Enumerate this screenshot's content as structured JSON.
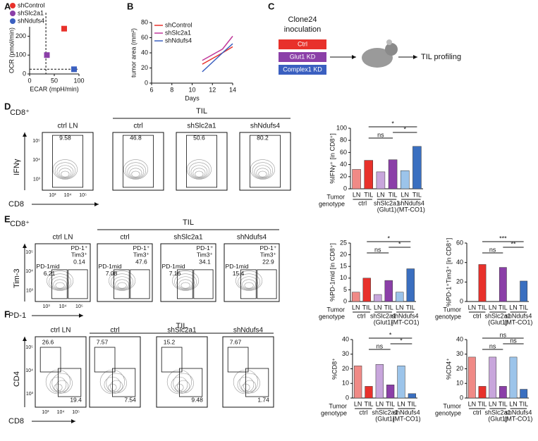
{
  "chart_data": [
    {
      "type": "scatter",
      "xlabel": "ECAR (mpH/min)",
      "ylabel": "OCR (pmol/min)",
      "xlim": [
        0,
        100
      ],
      "xticks": [
        0,
        50,
        100
      ],
      "ylim": [
        0,
        250
      ],
      "yticks": [
        0,
        100,
        200
      ],
      "ref_x": 33,
      "ref_y": 25,
      "series": [
        {
          "name": "shControl",
          "color": "#e8312b",
          "x": [
            70
          ],
          "values": [
            240
          ]
        },
        {
          "name": "shSlc2a1",
          "color": "#8b3fa8",
          "x": [
            35
          ],
          "values": [
            100
          ]
        },
        {
          "name": "shNdufs4",
          "color": "#3a5fc0",
          "x": [
            90
          ],
          "values": [
            25
          ]
        }
      ]
    },
    {
      "type": "line",
      "xlabel": "Days",
      "ylabel": "tumor area (mm²)",
      "x": [
        11,
        13,
        14
      ],
      "xlim": [
        6,
        14
      ],
      "xticks": [
        6,
        8,
        10,
        12,
        14
      ],
      "ylim": [
        0,
        80
      ],
      "yticks": [
        0,
        20,
        40,
        60,
        80
      ],
      "series": [
        {
          "name": "shControl",
          "color": "#e8312b",
          "values": [
            25,
            40,
            48
          ]
        },
        {
          "name": "shSlc2a1",
          "color": "#c0399b",
          "values": [
            30,
            45,
            62
          ]
        },
        {
          "name": "shNdufs4",
          "color": "#3a5fc0",
          "values": [
            15,
            40,
            52
          ]
        }
      ]
    },
    {
      "type": "bar",
      "ylabel": "%IFNγ⁺ [in CD8⁺]",
      "ylim": [
        0,
        100
      ],
      "yticks": [
        0,
        20,
        40,
        60,
        80,
        100
      ],
      "categories": [
        "LN",
        "TIL",
        "LN",
        "TIL",
        "LN",
        "TIL"
      ],
      "values": [
        32,
        47,
        28,
        48,
        30,
        70
      ],
      "colors": [
        "#f08a86",
        "#e8312b",
        "#c8a6dc",
        "#8b3fa8",
        "#9cc4ea",
        "#3a6fc0"
      ],
      "xlabel_lines": [
        "Tumor",
        "genotype"
      ],
      "groups": [
        {
          "name": "ctrl"
        },
        {
          "name": "shSlc2a1",
          "sub": "(Glut1)"
        },
        {
          "name": "shNdufs4",
          "sub": "(MT-CO1)"
        }
      ],
      "annotations": [
        "ns",
        "*",
        "*"
      ]
    },
    {
      "type": "bar",
      "ylabel": "%PD-1mid [in CD8⁺]",
      "ylim": [
        0,
        25
      ],
      "yticks": [
        0,
        5,
        10,
        15,
        20,
        25
      ],
      "categories": [
        "LN",
        "TIL",
        "LN",
        "TIL",
        "LN",
        "TIL"
      ],
      "values": [
        4,
        10,
        3,
        9,
        4,
        14
      ],
      "colors": [
        "#f08a86",
        "#e8312b",
        "#c8a6dc",
        "#8b3fa8",
        "#9cc4ea",
        "#3a6fc0"
      ],
      "xlabel_lines": [
        "Tumor",
        "genotype"
      ],
      "groups": [
        {
          "name": "ctrl"
        },
        {
          "name": "shSlc2a1",
          "sub": "(Glut1)"
        },
        {
          "name": "shNdufs4",
          "sub": "(MT-CO1)"
        }
      ],
      "annotations": [
        "ns",
        "*",
        "*"
      ]
    },
    {
      "type": "bar",
      "ylabel": "%PD-1⁺Tim3⁺ [in CD8⁺]",
      "ylim": [
        0,
        60
      ],
      "yticks": [
        0,
        20,
        40,
        60
      ],
      "categories": [
        "LN",
        "TIL",
        "LN",
        "TIL",
        "LN",
        "TIL"
      ],
      "values": [
        0,
        38,
        0,
        35,
        0,
        21
      ],
      "colors": [
        "#f08a86",
        "#e8312b",
        "#c8a6dc",
        "#8b3fa8",
        "#9cc4ea",
        "#3a6fc0"
      ],
      "xlabel_lines": [
        "Tumor",
        "genotype"
      ],
      "groups": [
        {
          "name": "ctrl"
        },
        {
          "name": "shSlc2a1",
          "sub": "(Glut1)"
        },
        {
          "name": "shNdufs4",
          "sub": "(MT-CO1)"
        }
      ],
      "annotations": [
        "ns",
        "***",
        "**"
      ]
    },
    {
      "type": "bar",
      "ylabel": "%CD8⁺",
      "ylim": [
        0,
        40
      ],
      "yticks": [
        0,
        10,
        20,
        30,
        40
      ],
      "categories": [
        "LN",
        "TIL",
        "LN",
        "TIL",
        "LN",
        "TIL"
      ],
      "values": [
        22,
        8,
        23,
        9,
        22,
        3
      ],
      "colors": [
        "#f08a86",
        "#e8312b",
        "#c8a6dc",
        "#8b3fa8",
        "#9cc4ea",
        "#3a6fc0"
      ],
      "xlabel_lines": [
        "Tumor",
        "genotype"
      ],
      "groups": [
        {
          "name": "ctrl"
        },
        {
          "name": "shSlc2a1",
          "sub": "(Glut1)"
        },
        {
          "name": "shNdufs4",
          "sub": "(MT-CO1)"
        }
      ],
      "annotations": [
        "ns",
        "*",
        "*"
      ]
    },
    {
      "type": "bar",
      "ylabel": "%CD4⁺",
      "ylim": [
        0,
        40
      ],
      "yticks": [
        0,
        10,
        20,
        30,
        40
      ],
      "categories": [
        "LN",
        "TIL",
        "LN",
        "TIL",
        "LN",
        "TIL"
      ],
      "values": [
        28,
        8,
        28,
        8,
        28,
        6
      ],
      "colors": [
        "#f08a86",
        "#e8312b",
        "#c8a6dc",
        "#8b3fa8",
        "#9cc4ea",
        "#3a6fc0"
      ],
      "xlabel_lines": [
        "Tumor",
        "genotype"
      ],
      "groups": [
        {
          "name": "ctrl"
        },
        {
          "name": "shSlc2a1",
          "sub": "(Glut1)"
        },
        {
          "name": "shNdufs4",
          "sub": "(MT-CO1)"
        }
      ],
      "annotations": [
        "ns",
        "ns",
        "ns"
      ]
    }
  ],
  "panel_labels": [
    "A",
    "B",
    "C",
    "D",
    "E",
    "F"
  ],
  "diagram": {
    "title_lines": [
      "Clone24",
      "inoculation"
    ],
    "boxes": [
      "Ctrl",
      "Glut1 KD",
      "Complex1 KD"
    ],
    "result": "TIL profiling"
  },
  "flow": [
    {
      "cell_label": "CD8⁺",
      "header": "TIL",
      "x_axis": "CD8",
      "y_axis": "IFNγ",
      "x_ticks": [
        "10³",
        "10⁴",
        "10⁵"
      ],
      "y_ticks": [
        "10⁵",
        "10⁴",
        "10³"
      ],
      "plots": [
        {
          "title": "ctrl LN",
          "gates": [
            "9.58"
          ]
        },
        {
          "title": "ctrl",
          "gates": [
            "46.8"
          ]
        },
        {
          "title": "shSlc2a1",
          "gates": [
            "50.6"
          ]
        },
        {
          "title": "shNdufs4",
          "gates": [
            "80.2"
          ]
        }
      ]
    },
    {
      "cell_label": "CD8⁺",
      "header": "TIL",
      "x_axis": "PD-1",
      "y_axis": "Tim-3",
      "x_ticks": [
        "10³",
        "10⁴",
        "10⁵"
      ],
      "y_ticks": [
        "10⁵",
        "10⁴",
        "10³"
      ],
      "plots": [
        {
          "title": "ctrl LN",
          "gates": [
            "PD-1mid",
            "6.21",
            "PD-1⁺",
            "Tim3⁺",
            "0.14"
          ]
        },
        {
          "title": "ctrl",
          "gates": [
            "PD-1mid",
            "7.08",
            "PD-1⁺",
            "Tim3⁺",
            "47.6"
          ]
        },
        {
          "title": "shSlc2a1",
          "gates": [
            "PD-1mid",
            "7.16",
            "PD-1⁺",
            "Tim3⁺",
            "34.1"
          ]
        },
        {
          "title": "shNdufs4",
          "gates": [
            "PD-1mid",
            "15.4",
            "PD-1⁺",
            "Tim3⁺",
            "22.9"
          ]
        }
      ]
    },
    {
      "header": "TIL",
      "x_axis": "CD8",
      "y_axis": "CD4",
      "x_ticks": [
        "10³",
        "10⁴",
        "10⁵"
      ],
      "y_ticks": [
        "10⁵",
        "10⁴",
        "10³"
      ],
      "plots": [
        {
          "title": "ctrl LN",
          "gates": [
            "26.6",
            "19.4"
          ]
        },
        {
          "title": "ctrl",
          "gates": [
            "7.57",
            "7.54"
          ]
        },
        {
          "title": "shSlc2a1",
          "gates": [
            "15.2",
            "9.48"
          ]
        },
        {
          "title": "shNdufs4",
          "gates": [
            "7.67",
            "1.74"
          ]
        }
      ]
    }
  ]
}
